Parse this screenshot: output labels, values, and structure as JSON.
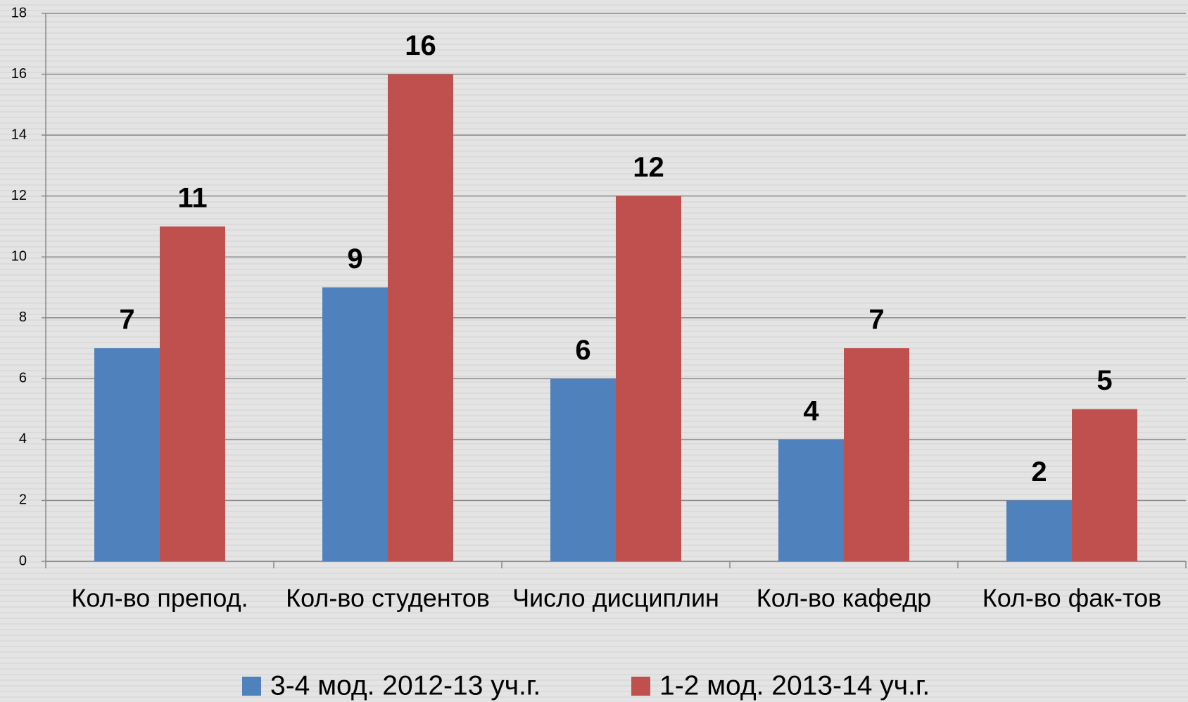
{
  "chart_data": {
    "type": "bar",
    "categories": [
      "Кол-во препод.",
      "Кол-во студентов",
      "Число дисциплин",
      "Кол-во кафедр",
      "Кол-во фак-тов"
    ],
    "series": [
      {
        "name": "3-4 мод. 2012-13 уч.г.",
        "color": "#4f81bd",
        "values": [
          7,
          9,
          6,
          4,
          2
        ]
      },
      {
        "name": "1-2 мод. 2013-14 уч.г.",
        "color": "#c0504d",
        "values": [
          11,
          16,
          12,
          7,
          5
        ]
      }
    ],
    "ylim": [
      0,
      18
    ],
    "yticks": [
      0,
      2,
      4,
      6,
      8,
      10,
      12,
      14,
      16,
      18
    ],
    "grid": true,
    "legend": "bottom"
  }
}
